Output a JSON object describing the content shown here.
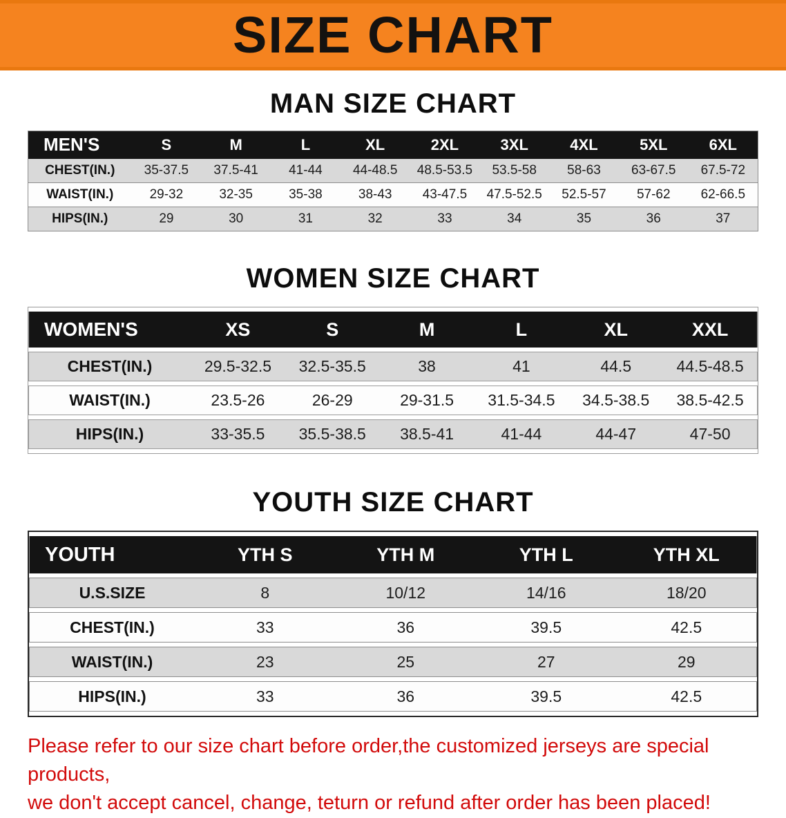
{
  "banner": {
    "title": "SIZE CHART"
  },
  "men": {
    "heading": "MAN SIZE CHART",
    "table": {
      "header": [
        "MEN'S",
        "S",
        "M",
        "L",
        "XL",
        "2XL",
        "3XL",
        "4XL",
        "5XL",
        "6XL"
      ],
      "rows": [
        {
          "label": "CHEST(IN.)",
          "values": [
            "35-37.5",
            "37.5-41",
            "41-44",
            "44-48.5",
            "48.5-53.5",
            "53.5-58",
            "58-63",
            "63-67.5",
            "67.5-72"
          ]
        },
        {
          "label": "WAIST(IN.)",
          "values": [
            "29-32",
            "32-35",
            "35-38",
            "38-43",
            "43-47.5",
            "47.5-52.5",
            "52.5-57",
            "57-62",
            "62-66.5"
          ]
        },
        {
          "label": "HIPS(IN.)",
          "values": [
            "29",
            "30",
            "31",
            "32",
            "33",
            "34",
            "35",
            "36",
            "37"
          ]
        }
      ]
    }
  },
  "women": {
    "heading": "WOMEN SIZE CHART",
    "table": {
      "header": [
        "WOMEN'S",
        "XS",
        "S",
        "M",
        "L",
        "XL",
        "XXL"
      ],
      "rows": [
        {
          "label": "CHEST(IN.)",
          "values": [
            "29.5-32.5",
            "32.5-35.5",
            "38",
            "41",
            "44.5",
            "44.5-48.5"
          ]
        },
        {
          "label": "WAIST(IN.)",
          "values": [
            "23.5-26",
            "26-29",
            "29-31.5",
            "31.5-34.5",
            "34.5-38.5",
            "38.5-42.5"
          ]
        },
        {
          "label": "HIPS(IN.)",
          "values": [
            "33-35.5",
            "35.5-38.5",
            "38.5-41",
            "41-44",
            "44-47",
            "47-50"
          ]
        }
      ]
    }
  },
  "youth": {
    "heading": "YOUTH SIZE CHART",
    "table": {
      "header": [
        "YOUTH",
        "YTH S",
        "YTH M",
        "YTH L",
        "YTH XL"
      ],
      "rows": [
        {
          "label": "U.S.SIZE",
          "values": [
            "8",
            "10/12",
            "14/16",
            "18/20"
          ]
        },
        {
          "label": "CHEST(IN.)",
          "values": [
            "33",
            "36",
            "39.5",
            "42.5"
          ]
        },
        {
          "label": "WAIST(IN.)",
          "values": [
            "23",
            "25",
            "27",
            "29"
          ]
        },
        {
          "label": "HIPS(IN.)",
          "values": [
            "33",
            "36",
            "39.5",
            "42.5"
          ]
        }
      ]
    }
  },
  "note": {
    "line1": "Please refer to our size chart before order,the customized jerseys are special products,",
    "line2": "we don't accept cancel, change, teturn or refund after order has been placed!"
  },
  "colors": {
    "banner_orange": "#f5831f",
    "header_black": "#141414",
    "row_gray": "#d9d9d9",
    "note_red": "#d20a0a"
  }
}
